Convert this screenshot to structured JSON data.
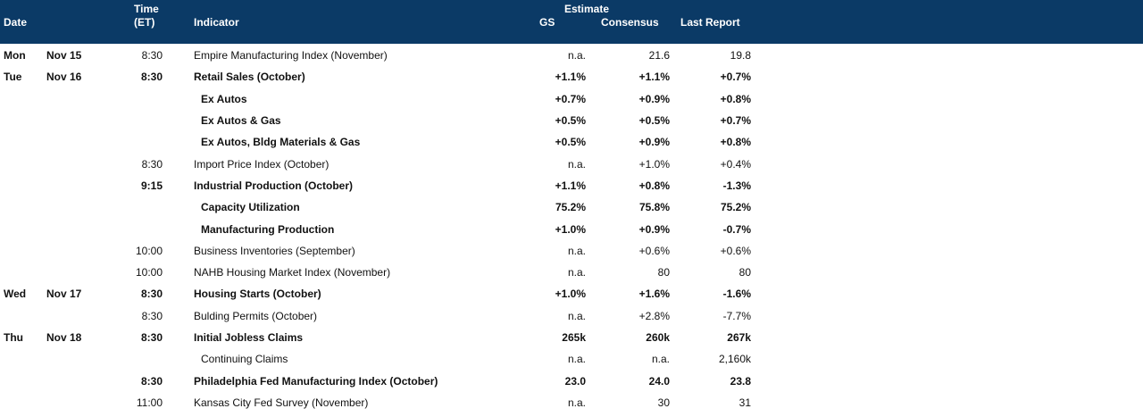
{
  "header": {
    "date": "Date",
    "time_top": "Time",
    "time_bottom": "(ET)",
    "indicator": "Indicator",
    "estimate": "Estimate",
    "gs": "GS",
    "consensus": "Consensus",
    "last_report": "Last Report"
  },
  "rows": [
    {
      "day": "Mon",
      "date": "Nov 15",
      "time": "8:30",
      "indicator": "Empire Manufacturing Index (November)",
      "gs": "n.a.",
      "consensus": "21.6",
      "last": "19.8",
      "bold": false,
      "indent": false
    },
    {
      "day": "Tue",
      "date": "Nov 16",
      "time": "8:30",
      "indicator": "Retail Sales (October)",
      "gs": "+1.1%",
      "consensus": "+1.1%",
      "last": "+0.7%",
      "bold": true,
      "indent": false
    },
    {
      "day": "",
      "date": "",
      "time": "",
      "indicator": "Ex Autos",
      "gs": "+0.7%",
      "consensus": "+0.9%",
      "last": "+0.8%",
      "bold": true,
      "indent": true
    },
    {
      "day": "",
      "date": "",
      "time": "",
      "indicator": "Ex Autos & Gas",
      "gs": "+0.5%",
      "consensus": "+0.5%",
      "last": "+0.7%",
      "bold": true,
      "indent": true
    },
    {
      "day": "",
      "date": "",
      "time": "",
      "indicator": "Ex Autos, Bldg Materials & Gas",
      "gs": "+0.5%",
      "consensus": "+0.9%",
      "last": "+0.8%",
      "bold": true,
      "indent": true
    },
    {
      "day": "",
      "date": "",
      "time": "8:30",
      "indicator": "Import Price Index (October)",
      "gs": "n.a.",
      "consensus": "+1.0%",
      "last": "+0.4%",
      "bold": false,
      "indent": false
    },
    {
      "day": "",
      "date": "",
      "time": "9:15",
      "indicator": "Industrial Production (October)",
      "gs": "+1.1%",
      "consensus": "+0.8%",
      "last": "-1.3%",
      "bold": true,
      "indent": false
    },
    {
      "day": "",
      "date": "",
      "time": "",
      "indicator": "Capacity Utilization",
      "gs": "75.2%",
      "consensus": "75.8%",
      "last": "75.2%",
      "bold": true,
      "indent": true
    },
    {
      "day": "",
      "date": "",
      "time": "",
      "indicator": "Manufacturing Production",
      "gs": "+1.0%",
      "consensus": "+0.9%",
      "last": "-0.7%",
      "bold": true,
      "indent": true
    },
    {
      "day": "",
      "date": "",
      "time": "10:00",
      "indicator": "Business Inventories (September)",
      "gs": "n.a.",
      "consensus": "+0.6%",
      "last": "+0.6%",
      "bold": false,
      "indent": false
    },
    {
      "day": "",
      "date": "",
      "time": "10:00",
      "indicator": "NAHB Housing Market Index (November)",
      "gs": "n.a.",
      "consensus": "80",
      "last": "80",
      "bold": false,
      "indent": false
    },
    {
      "day": "Wed",
      "date": "Nov 17",
      "time": "8:30",
      "indicator": "Housing Starts (October)",
      "gs": "+1.0%",
      "consensus": "+1.6%",
      "last": "-1.6%",
      "bold": true,
      "indent": false
    },
    {
      "day": "",
      "date": "",
      "time": "8:30",
      "indicator": "Bulding Permits (October)",
      "gs": "n.a.",
      "consensus": "+2.8%",
      "last": "-7.7%",
      "bold": false,
      "indent": false
    },
    {
      "day": "Thu",
      "date": "Nov 18",
      "time": "8:30",
      "indicator": "Initial Jobless Claims",
      "gs": "265k",
      "consensus": "260k",
      "last": "267k",
      "bold": true,
      "indent": false
    },
    {
      "day": "",
      "date": "",
      "time": "",
      "indicator": "Continuing Claims",
      "gs": "n.a.",
      "consensus": "n.a.",
      "last": "2,160k",
      "bold": false,
      "indent": true
    },
    {
      "day": "",
      "date": "",
      "time": "8:30",
      "indicator": "Philadelphia Fed Manufacturing Index (October)",
      "gs": "23.0",
      "consensus": "24.0",
      "last": "23.8",
      "bold": true,
      "indent": false
    },
    {
      "day": "",
      "date": "",
      "time": "11:00",
      "indicator": "Kansas City Fed Survey (November)",
      "gs": "n.a.",
      "consensus": "30",
      "last": "31",
      "bold": false,
      "indent": false
    }
  ]
}
